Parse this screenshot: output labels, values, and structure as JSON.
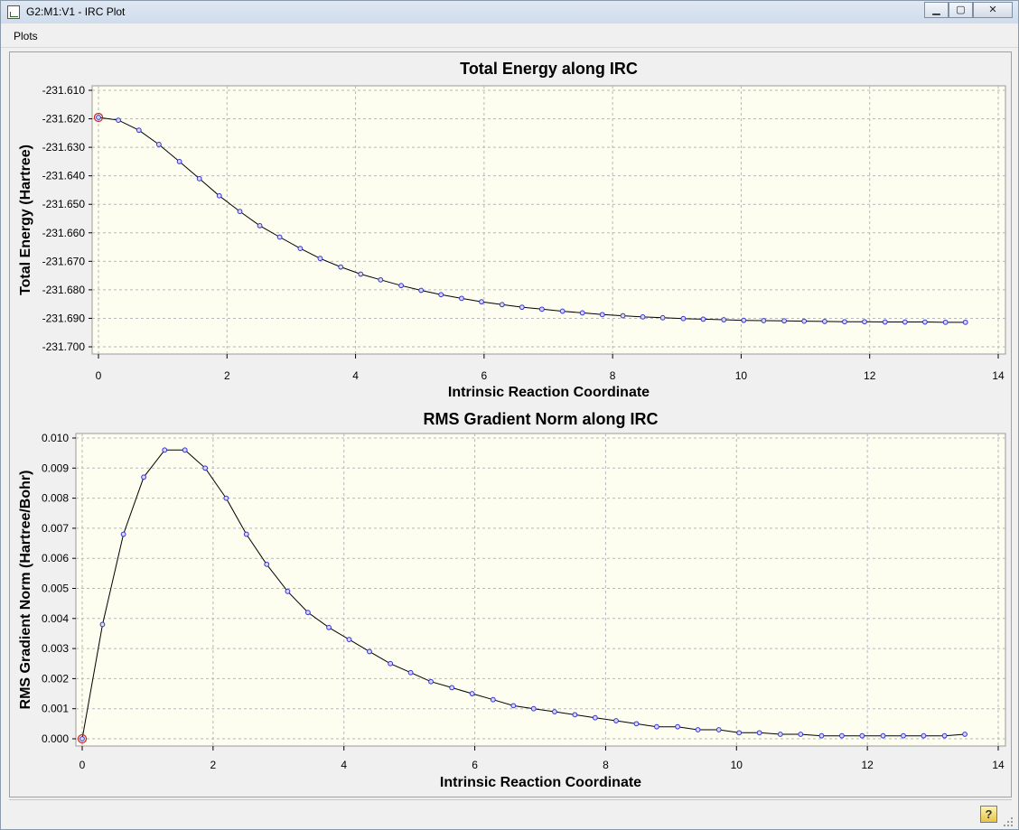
{
  "window": {
    "title": "G2:M1:V1 - IRC Plot",
    "minimize_label": "▁",
    "maximize_label": "▢",
    "close_label": "✕"
  },
  "menu": {
    "plots_label": "Plots"
  },
  "help": {
    "label": "?"
  },
  "icons": {
    "app": "plot-window-icon",
    "help": "help-icon",
    "grip": "resize-grip-icon"
  },
  "colors": {
    "plot_background": "#fdfdf0",
    "line": "#000000",
    "marker": "#3333cc",
    "highlight_marker": "#cc2222",
    "grid": "#b8b8b8"
  },
  "chart_data": [
    {
      "type": "line",
      "title": "Total Energy along IRC",
      "xlabel": "Intrinsic Reaction Coordinate",
      "ylabel": "Total Energy (Hartree)",
      "xlim": [
        0,
        14
      ],
      "ylim": [
        -231.7,
        -231.61
      ],
      "xticks": [
        "0",
        "2",
        "4",
        "6",
        "8",
        "10",
        "12",
        "14"
      ],
      "yticks": [
        "-231.610",
        "-231.620",
        "-231.630",
        "-231.640",
        "-231.650",
        "-231.660",
        "-231.670",
        "-231.680",
        "-231.690",
        "-231.700"
      ],
      "grid": true,
      "highlighted_point_index": 0,
      "x": [
        0,
        0.31,
        0.63,
        0.94,
        1.26,
        1.57,
        1.88,
        2.2,
        2.51,
        2.82,
        3.14,
        3.45,
        3.77,
        4.08,
        4.39,
        4.71,
        5.02,
        5.33,
        5.65,
        5.96,
        6.28,
        6.59,
        6.9,
        7.22,
        7.53,
        7.84,
        8.16,
        8.47,
        8.78,
        9.1,
        9.41,
        9.73,
        10.04,
        10.35,
        10.67,
        10.98,
        11.3,
        11.61,
        11.92,
        12.24,
        12.55,
        12.86,
        13.18,
        13.49
      ],
      "y": [
        -231.6195,
        -231.6205,
        -231.624,
        -231.629,
        -231.635,
        -231.641,
        -231.647,
        -231.6525,
        -231.6575,
        -231.6615,
        -231.6655,
        -231.669,
        -231.672,
        -231.6745,
        -231.6765,
        -231.6785,
        -231.6802,
        -231.6817,
        -231.683,
        -231.6842,
        -231.6852,
        -231.6861,
        -231.6868,
        -231.6875,
        -231.6881,
        -231.6887,
        -231.6891,
        -231.6895,
        -231.6898,
        -231.6901,
        -231.6903,
        -231.6905,
        -231.6907,
        -231.6908,
        -231.6909,
        -231.691,
        -231.6911,
        -231.6912,
        -231.6912,
        -231.6913,
        -231.6913,
        -231.6913,
        -231.6914,
        -231.6914
      ]
    },
    {
      "type": "line",
      "title": "RMS Gradient Norm along IRC",
      "xlabel": "Intrinsic Reaction Coordinate",
      "ylabel": "RMS Gradient Norm (Hartree/Bohr)",
      "xlim": [
        0,
        14
      ],
      "ylim": [
        0,
        0.01
      ],
      "xticks": [
        "0",
        "2",
        "4",
        "6",
        "8",
        "10",
        "12",
        "14"
      ],
      "yticks": [
        "0.000",
        "0.001",
        "0.002",
        "0.003",
        "0.004",
        "0.005",
        "0.006",
        "0.007",
        "0.008",
        "0.009",
        "0.010"
      ],
      "grid": true,
      "highlighted_point_index": 0,
      "x": [
        0,
        0.31,
        0.63,
        0.94,
        1.26,
        1.57,
        1.88,
        2.2,
        2.51,
        2.82,
        3.14,
        3.45,
        3.77,
        4.08,
        4.39,
        4.71,
        5.02,
        5.33,
        5.65,
        5.96,
        6.28,
        6.59,
        6.9,
        7.22,
        7.53,
        7.84,
        8.16,
        8.47,
        8.78,
        9.1,
        9.41,
        9.73,
        10.04,
        10.35,
        10.67,
        10.98,
        11.3,
        11.61,
        11.92,
        12.24,
        12.55,
        12.86,
        13.18,
        13.49
      ],
      "y": [
        0.0,
        0.0038,
        0.0068,
        0.0087,
        0.0096,
        0.0096,
        0.009,
        0.008,
        0.0068,
        0.0058,
        0.0049,
        0.0042,
        0.0037,
        0.0033,
        0.0029,
        0.0025,
        0.0022,
        0.0019,
        0.0017,
        0.0015,
        0.0013,
        0.0011,
        0.001,
        0.0009,
        0.0008,
        0.0007,
        0.0006,
        0.0005,
        0.0004,
        0.0004,
        0.0003,
        0.0003,
        0.0002,
        0.0002,
        0.00015,
        0.00015,
        0.0001,
        0.0001,
        0.0001,
        0.0001,
        0.0001,
        0.0001,
        0.0001,
        0.00015
      ]
    }
  ]
}
